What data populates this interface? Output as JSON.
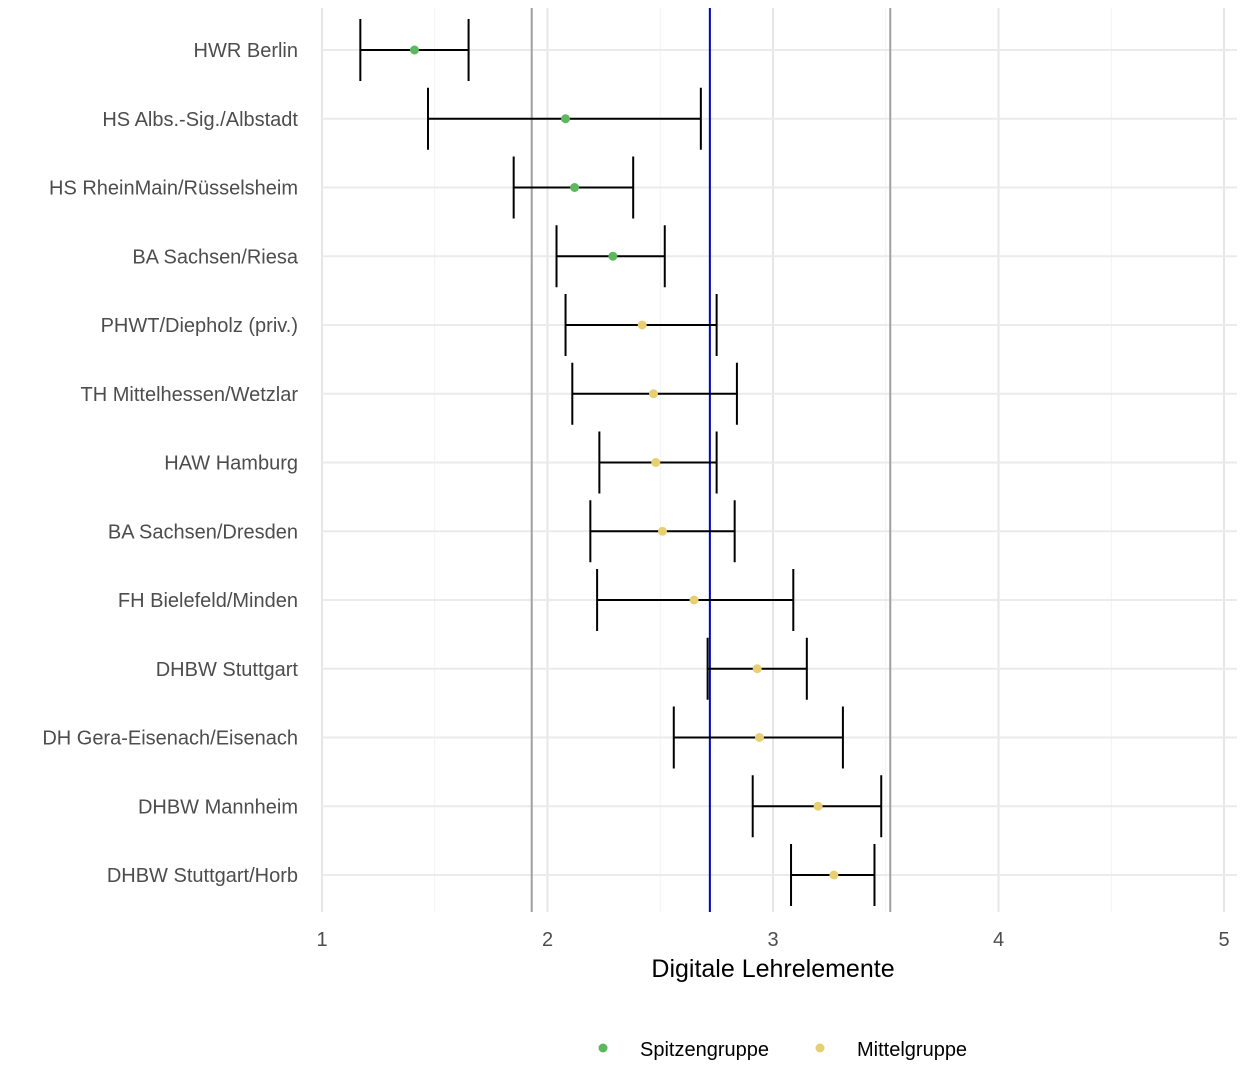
{
  "chart_data": {
    "type": "scatter",
    "xlabel": "Digitale Lehrelemente",
    "xlim": [
      1,
      5
    ],
    "x_ticks": [
      "1",
      "2",
      "3",
      "4",
      "5"
    ],
    "grid": true,
    "legend_position": "bottom",
    "reference_lines": [
      {
        "x": 1.93,
        "color": "#a0a0a0"
      },
      {
        "x": 2.72,
        "color": "#0000cc"
      },
      {
        "x": 3.52,
        "color": "#a0a0a0"
      }
    ],
    "groups": [
      {
        "name": "Spitzengruppe",
        "color": "#5cb85c"
      },
      {
        "name": "Mittelgruppe",
        "color": "#e8cf72"
      }
    ],
    "points": [
      {
        "label": "HWR Berlin",
        "x": 1.41,
        "low": 1.17,
        "high": 1.65,
        "group": 0
      },
      {
        "label": "HS Albs.-Sig./Albstadt",
        "x": 2.08,
        "low": 1.47,
        "high": 2.68,
        "group": 0
      },
      {
        "label": "HS RheinMain/Rüsselsheim",
        "x": 2.12,
        "low": 1.85,
        "high": 2.38,
        "group": 0
      },
      {
        "label": "BA Sachsen/Riesa",
        "x": 2.29,
        "low": 2.04,
        "high": 2.52,
        "group": 0
      },
      {
        "label": "PHWT/Diepholz (priv.)",
        "x": 2.42,
        "low": 2.08,
        "high": 2.75,
        "group": 1
      },
      {
        "label": "TH Mittelhessen/Wetzlar",
        "x": 2.47,
        "low": 2.11,
        "high": 2.84,
        "group": 1
      },
      {
        "label": "HAW Hamburg",
        "x": 2.48,
        "low": 2.23,
        "high": 2.75,
        "group": 1
      },
      {
        "label": "BA Sachsen/Dresden",
        "x": 2.51,
        "low": 2.19,
        "high": 2.83,
        "group": 1
      },
      {
        "label": "FH Bielefeld/Minden",
        "x": 2.65,
        "low": 2.22,
        "high": 3.09,
        "group": 1
      },
      {
        "label": "DHBW Stuttgart",
        "x": 2.93,
        "low": 2.71,
        "high": 3.15,
        "group": 1
      },
      {
        "label": "DH Gera-Eisenach/Eisenach",
        "x": 2.94,
        "low": 2.56,
        "high": 3.31,
        "group": 1
      },
      {
        "label": "DHBW Mannheim",
        "x": 3.2,
        "low": 2.91,
        "high": 3.48,
        "group": 1
      },
      {
        "label": "DHBW Stuttgart/Horb",
        "x": 3.27,
        "low": 3.08,
        "high": 3.45,
        "group": 1
      }
    ]
  }
}
